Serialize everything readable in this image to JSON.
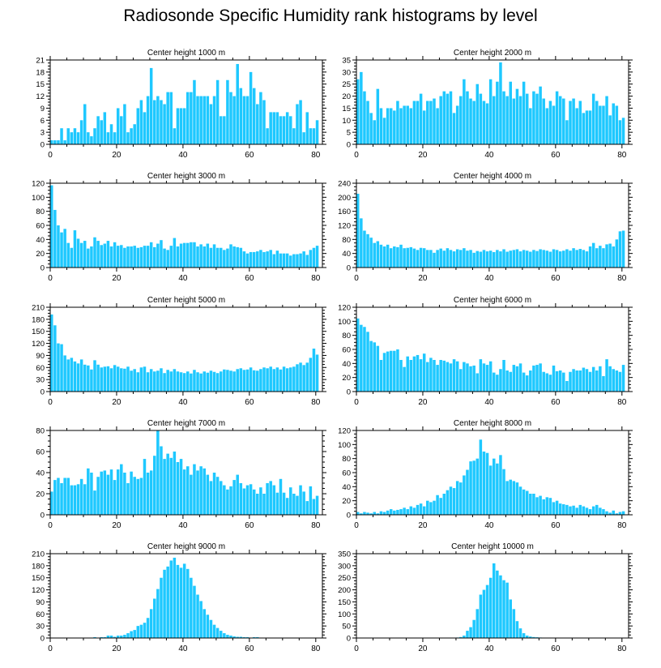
{
  "figure_title": "Radiosonde Specific Humidity rank histograms by level",
  "colors": {
    "bar": "#1ec8ff",
    "axis": "#000000"
  },
  "chart_data": [
    {
      "type": "bar",
      "title": "Center height 1000 m",
      "x_ticks": [
        0,
        20,
        40,
        60,
        80
      ],
      "xlim": [
        0,
        82
      ],
      "ylim": [
        0,
        21
      ],
      "y_ticks": [
        0,
        3,
        6,
        9,
        12,
        15,
        18,
        21
      ],
      "values": [
        1,
        1,
        1,
        4,
        1,
        4,
        3,
        4,
        3,
        6,
        10,
        3,
        2,
        4,
        7,
        6,
        8,
        3,
        5,
        3,
        9,
        7,
        10,
        3,
        4,
        5,
        9,
        11,
        8,
        12,
        19,
        11,
        12,
        11,
        10,
        13,
        13,
        4,
        9,
        9,
        9,
        13,
        13,
        16,
        12,
        12,
        12,
        12,
        10,
        12,
        16,
        7,
        7,
        16,
        13,
        12,
        20,
        14,
        12,
        12,
        18,
        14,
        10,
        13,
        11,
        4,
        8,
        8,
        8,
        7,
        7,
        8,
        7,
        4,
        10,
        11,
        3,
        8,
        4,
        4,
        6
      ]
    },
    {
      "type": "bar",
      "title": "Center height 2000 m",
      "x_ticks": [
        0,
        20,
        40,
        60,
        80
      ],
      "xlim": [
        0,
        82
      ],
      "ylim": [
        0,
        35
      ],
      "y_ticks": [
        0,
        5,
        10,
        15,
        20,
        25,
        30,
        35
      ],
      "values": [
        27,
        30,
        22,
        18,
        13,
        10,
        23,
        15,
        11,
        15,
        15,
        14,
        18,
        15,
        16,
        16,
        15,
        18,
        18,
        21,
        14,
        18,
        18,
        19,
        15,
        20,
        22,
        21,
        22,
        13,
        16,
        20,
        27,
        22,
        19,
        18,
        25,
        21,
        18,
        17,
        27,
        20,
        26,
        34,
        22,
        20,
        26,
        19,
        23,
        20,
        26,
        21,
        15,
        22,
        21,
        24,
        19,
        15,
        18,
        16,
        22,
        20,
        19,
        10,
        18,
        19,
        15,
        18,
        13,
        14,
        14,
        21,
        18,
        16,
        16,
        20,
        12,
        17,
        16,
        10,
        11
      ]
    },
    {
      "type": "bar",
      "title": "Center height 3000 m",
      "x_ticks": [
        0,
        20,
        40,
        60,
        80
      ],
      "xlim": [
        0,
        82
      ],
      "ylim": [
        0,
        120
      ],
      "y_ticks": [
        0,
        20,
        40,
        60,
        80,
        100,
        120
      ],
      "values": [
        117,
        82,
        60,
        50,
        55,
        35,
        28,
        53,
        41,
        35,
        38,
        27,
        30,
        43,
        38,
        32,
        34,
        38,
        30,
        36,
        31,
        32,
        28,
        30,
        30,
        31,
        28,
        29,
        31,
        31,
        36,
        29,
        34,
        39,
        27,
        25,
        31,
        42,
        30,
        34,
        35,
        35,
        36,
        36,
        30,
        33,
        30,
        34,
        28,
        33,
        28,
        28,
        25,
        27,
        33,
        30,
        29,
        28,
        23,
        20,
        22,
        22,
        23,
        25,
        22,
        23,
        25,
        19,
        24,
        20,
        20,
        20,
        17,
        19,
        19,
        20,
        23,
        18,
        25,
        28,
        31
      ]
    },
    {
      "type": "bar",
      "title": "Center height 4000 m",
      "x_ticks": [
        0,
        20,
        40,
        60,
        80
      ],
      "xlim": [
        0,
        82
      ],
      "ylim": [
        0,
        240
      ],
      "y_ticks": [
        0,
        40,
        80,
        120,
        160,
        200,
        240
      ],
      "values": [
        210,
        140,
        105,
        95,
        85,
        70,
        75,
        65,
        60,
        65,
        55,
        60,
        58,
        65,
        55,
        56,
        58,
        54,
        50,
        56,
        55,
        50,
        50,
        42,
        50,
        54,
        48,
        55,
        50,
        46,
        52,
        50,
        55,
        48,
        50,
        42,
        47,
        45,
        50,
        46,
        48,
        44,
        50,
        46,
        52,
        45,
        48,
        50,
        52,
        46,
        50,
        48,
        45,
        50,
        47,
        52,
        50,
        48,
        45,
        52,
        50,
        46,
        48,
        52,
        48,
        55,
        50,
        53,
        50,
        46,
        60,
        70,
        55,
        62,
        55,
        66,
        68,
        60,
        80,
        103,
        105
      ]
    },
    {
      "type": "bar",
      "title": "Center height 5000 m",
      "x_ticks": [
        0,
        20,
        40,
        60,
        80
      ],
      "xlim": [
        0,
        82
      ],
      "ylim": [
        0,
        210
      ],
      "y_ticks": [
        0,
        30,
        60,
        90,
        120,
        150,
        180,
        210
      ],
      "values": [
        192,
        165,
        120,
        118,
        90,
        80,
        84,
        75,
        70,
        80,
        67,
        65,
        55,
        78,
        67,
        60,
        62,
        63,
        58,
        66,
        62,
        58,
        57,
        62,
        52,
        56,
        48,
        60,
        62,
        48,
        56,
        50,
        52,
        58,
        46,
        54,
        50,
        56,
        50,
        48,
        46,
        50,
        45,
        54,
        48,
        45,
        50,
        47,
        52,
        49,
        46,
        50,
        55,
        54,
        52,
        50,
        56,
        58,
        54,
        55,
        60,
        53,
        52,
        56,
        60,
        58,
        62,
        56,
        60,
        55,
        62,
        58,
        60,
        62,
        68,
        72,
        66,
        72,
        84,
        107,
        92
      ]
    },
    {
      "type": "bar",
      "title": "Center height 6000 m",
      "x_ticks": [
        0,
        20,
        40,
        60,
        80
      ],
      "xlim": [
        0,
        82
      ],
      "ylim": [
        0,
        120
      ],
      "y_ticks": [
        0,
        20,
        40,
        60,
        80,
        100,
        120
      ],
      "values": [
        104,
        95,
        92,
        85,
        72,
        70,
        65,
        45,
        55,
        57,
        58,
        58,
        60,
        45,
        35,
        50,
        45,
        50,
        52,
        46,
        54,
        42,
        48,
        45,
        38,
        45,
        44,
        42,
        40,
        46,
        43,
        32,
        42,
        40,
        36,
        37,
        26,
        46,
        40,
        38,
        43,
        27,
        24,
        32,
        45,
        30,
        28,
        38,
        36,
        40,
        27,
        23,
        30,
        37,
        38,
        40,
        28,
        26,
        24,
        37,
        29,
        30,
        27,
        15,
        28,
        32,
        30,
        30,
        34,
        32,
        28,
        35,
        30,
        36,
        22,
        46,
        36,
        32,
        30,
        28,
        38
      ]
    },
    {
      "type": "bar",
      "title": "Center height 7000 m",
      "x_ticks": [
        0,
        20,
        40,
        60,
        80
      ],
      "xlim": [
        0,
        82
      ],
      "ylim": [
        0,
        80
      ],
      "y_ticks": [
        0,
        20,
        40,
        60,
        80
      ],
      "values": [
        22,
        33,
        35,
        30,
        35,
        35,
        28,
        28,
        29,
        34,
        29,
        44,
        40,
        23,
        36,
        41,
        42,
        38,
        43,
        33,
        43,
        48,
        40,
        30,
        41,
        36,
        34,
        35,
        53,
        40,
        42,
        56,
        80,
        65,
        53,
        58,
        54,
        60,
        50,
        53,
        43,
        46,
        38,
        48,
        42,
        46,
        44,
        38,
        32,
        40,
        36,
        32,
        28,
        24,
        27,
        33,
        38,
        30,
        25,
        28,
        29,
        24,
        20,
        26,
        20,
        30,
        32,
        28,
        21,
        34,
        21,
        16,
        26,
        20,
        18,
        28,
        22,
        13,
        27,
        15,
        18
      ]
    },
    {
      "type": "bar",
      "title": "Center height 8000 m",
      "x_ticks": [
        0,
        20,
        40,
        60,
        80
      ],
      "xlim": [
        0,
        82
      ],
      "ylim": [
        0,
        120
      ],
      "y_ticks": [
        0,
        20,
        40,
        60,
        80,
        100,
        120
      ],
      "values": [
        4,
        2,
        4,
        3,
        2,
        4,
        2,
        5,
        4,
        6,
        8,
        6,
        7,
        8,
        10,
        8,
        12,
        10,
        14,
        16,
        12,
        20,
        18,
        20,
        28,
        24,
        30,
        35,
        40,
        38,
        48,
        46,
        56,
        64,
        76,
        77,
        80,
        107,
        90,
        88,
        70,
        80,
        73,
        85,
        65,
        48,
        50,
        48,
        46,
        40,
        36,
        34,
        30,
        30,
        25,
        27,
        22,
        25,
        24,
        18,
        20,
        16,
        15,
        14,
        12,
        13,
        10,
        14,
        12,
        10,
        8,
        12,
        14,
        10,
        8,
        5,
        3,
        6,
        2,
        4,
        5
      ]
    },
    {
      "type": "bar",
      "title": "Center height 9000 m",
      "x_ticks": [
        0,
        20,
        40,
        60,
        80
      ],
      "xlim": [
        0,
        82
      ],
      "ylim": [
        0,
        210
      ],
      "y_ticks": [
        0,
        30,
        60,
        90,
        120,
        150,
        180,
        210
      ],
      "values": [
        0,
        0,
        0,
        0,
        0,
        1,
        0,
        1,
        0,
        1,
        1,
        0,
        1,
        2,
        1,
        2,
        2,
        6,
        6,
        3,
        6,
        6,
        8,
        12,
        17,
        20,
        30,
        33,
        38,
        50,
        72,
        98,
        122,
        150,
        170,
        178,
        193,
        200,
        182,
        175,
        185,
        172,
        150,
        130,
        108,
        92,
        72,
        58,
        45,
        33,
        25,
        18,
        12,
        8,
        6,
        4,
        3,
        3,
        2,
        2,
        1,
        2,
        2,
        1,
        1,
        1,
        1,
        0,
        1,
        1,
        0,
        0,
        1,
        0,
        0,
        0,
        1,
        0,
        0,
        0,
        0
      ]
    },
    {
      "type": "bar",
      "title": "Center height 10000 m",
      "x_ticks": [
        0,
        20,
        40,
        60,
        80
      ],
      "xlim": [
        0,
        82
      ],
      "ylim": [
        0,
        350
      ],
      "y_ticks": [
        0,
        50,
        100,
        150,
        200,
        250,
        300,
        350
      ],
      "values": [
        0,
        0,
        0,
        0,
        0,
        0,
        0,
        0,
        0,
        0,
        0,
        0,
        0,
        0,
        0,
        0,
        0,
        0,
        0,
        0,
        0,
        0,
        0,
        0,
        0,
        0,
        0,
        0,
        0,
        0,
        2,
        4,
        10,
        30,
        45,
        75,
        120,
        180,
        200,
        220,
        250,
        310,
        280,
        260,
        240,
        230,
        160,
        120,
        70,
        40,
        20,
        10,
        6,
        4,
        3,
        2,
        1,
        1,
        1,
        1,
        0,
        1,
        0,
        0,
        0,
        0,
        0,
        0,
        0,
        0,
        0,
        0,
        0,
        0,
        0,
        0,
        1,
        1,
        1,
        0,
        1
      ]
    }
  ]
}
